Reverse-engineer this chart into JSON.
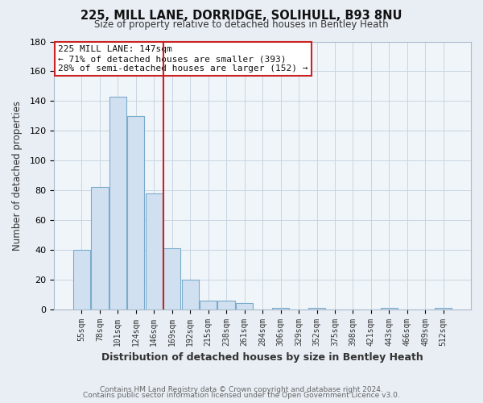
{
  "title": "225, MILL LANE, DORRIDGE, SOLIHULL, B93 8NU",
  "subtitle": "Size of property relative to detached houses in Bentley Heath",
  "xlabel": "Distribution of detached houses by size in Bentley Heath",
  "ylabel": "Number of detached properties",
  "bar_labels": [
    "55sqm",
    "78sqm",
    "101sqm",
    "124sqm",
    "146sqm",
    "169sqm",
    "192sqm",
    "215sqm",
    "238sqm",
    "261sqm",
    "284sqm",
    "306sqm",
    "329sqm",
    "352sqm",
    "375sqm",
    "398sqm",
    "421sqm",
    "443sqm",
    "466sqm",
    "489sqm",
    "512sqm"
  ],
  "bar_values": [
    40,
    82,
    143,
    130,
    78,
    41,
    20,
    6,
    6,
    4,
    0,
    1,
    0,
    1,
    0,
    0,
    0,
    1,
    0,
    0,
    1
  ],
  "property_bar_index": 4,
  "bar_color": "#d0e0f0",
  "bar_edge_color": "#7aabcc",
  "property_line_color": "#cc2222",
  "annotation_text_line1": "225 MILL LANE: 147sqm",
  "annotation_text_line2": "← 71% of detached houses are smaller (393)",
  "annotation_text_line3": "28% of semi-detached houses are larger (152) →",
  "annotation_box_facecolor": "#ffffff",
  "annotation_box_edgecolor": "#cc2222",
  "ylim": [
    0,
    180
  ],
  "yticks": [
    0,
    20,
    40,
    60,
    80,
    100,
    120,
    140,
    160,
    180
  ],
  "footer1": "Contains HM Land Registry data © Crown copyright and database right 2024.",
  "footer2": "Contains public sector information licensed under the Open Government Licence v3.0.",
  "bg_color": "#e8eef4",
  "plot_bg_color": "#f0f5fa",
  "grid_color": "#c8d4e0",
  "title_fontsize": 10.5,
  "subtitle_fontsize": 8.5
}
